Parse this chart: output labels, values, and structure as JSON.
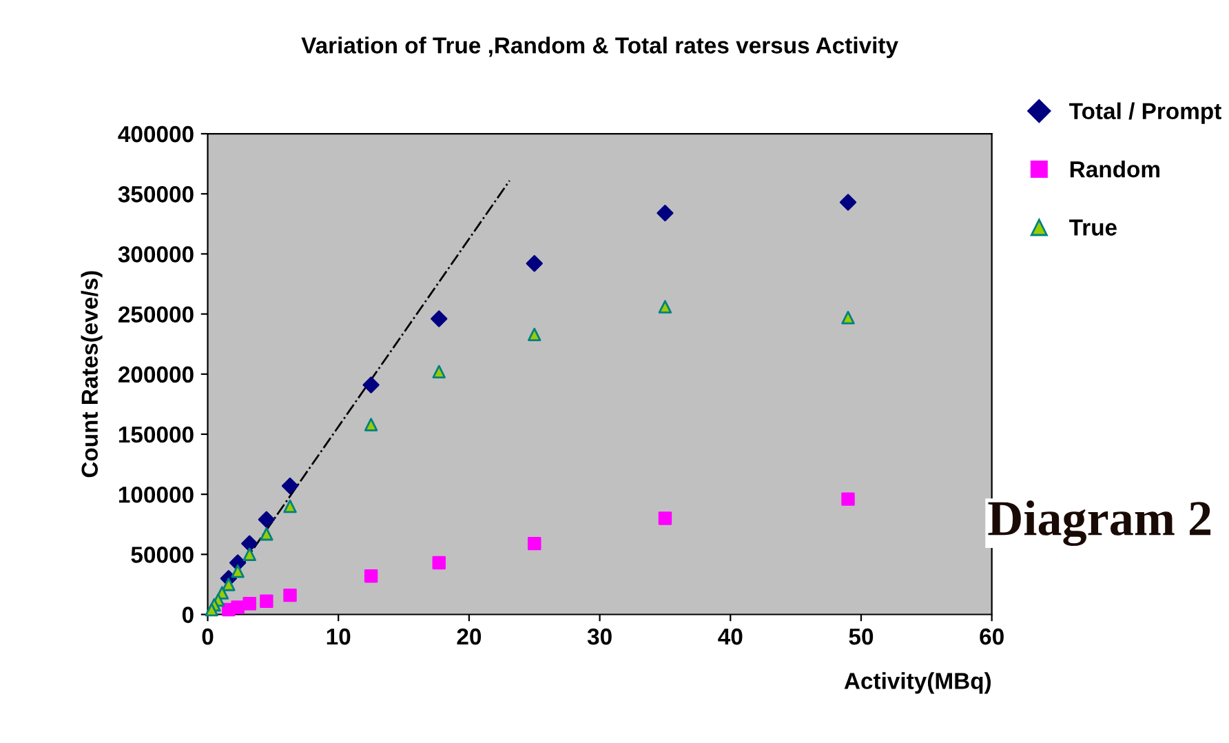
{
  "chart_data": {
    "type": "scatter",
    "title": "Variation of True ,Random & Total rates versus Activity",
    "xlabel": "Activity(MBq)",
    "ylabel": "Count Rates(eve/s)",
    "xlim": [
      0,
      60
    ],
    "xticks": [
      0,
      10,
      20,
      30,
      40,
      50,
      60
    ],
    "ylim": [
      0,
      400000
    ],
    "yticks": [
      0,
      50000,
      100000,
      150000,
      200000,
      250000,
      300000,
      350000,
      400000
    ],
    "grid": false,
    "legend": "right",
    "annotations": [
      "Diagram 2"
    ],
    "series": [
      {
        "name": "Total / Prompt",
        "color": "#000080",
        "marker": "diamond",
        "x": [
          49,
          35,
          25,
          17.7,
          12.5,
          6.3,
          4.5,
          3.2,
          2.3,
          1.6
        ],
        "values": [
          343000,
          334000,
          292000,
          246000,
          191000,
          107000,
          79000,
          59000,
          43000,
          30000
        ]
      },
      {
        "name": "Random",
        "color": "#ff00ff",
        "marker": "square",
        "x": [
          49,
          35,
          25,
          17.7,
          12.5,
          6.3,
          4.5,
          3.2,
          2.3,
          1.6
        ],
        "values": [
          96000,
          80000,
          59000,
          43000,
          32000,
          16000,
          11000,
          9000,
          6000,
          4000
        ]
      },
      {
        "name": "True",
        "color": "#99cc00",
        "marker": "triangle",
        "x": [
          49,
          35,
          25,
          17.7,
          12.5,
          6.3,
          4.5,
          3.2,
          2.3,
          1.6,
          1.1,
          0.8,
          0.5,
          0.3
        ],
        "values": [
          247000,
          256000,
          233000,
          202000,
          158000,
          90000,
          67000,
          50000,
          36000,
          25000,
          18000,
          12000,
          8000,
          4000
        ]
      },
      {
        "type": "line",
        "color": "#000000",
        "line_style": "dashed",
        "marker": "none",
        "x": [
          0,
          23.1
        ],
        "values": [
          0,
          361000
        ]
      }
    ]
  }
}
